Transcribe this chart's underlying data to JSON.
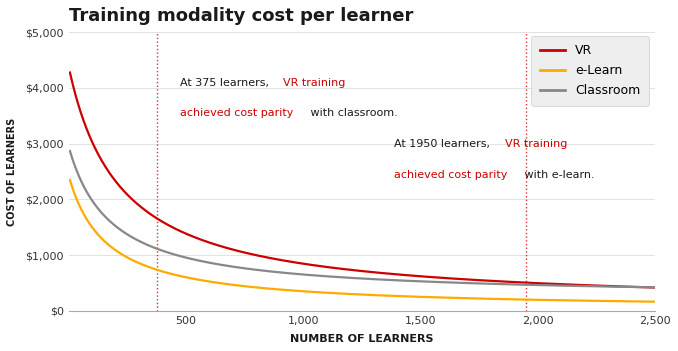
{
  "title": "Training modality cost per learner",
  "xlabel": "NUMBER OF LEARNERS",
  "ylabel": "COST OF LEARNERS",
  "x_max": 2500,
  "y_max": 5000,
  "y_ticks": [
    0,
    1000,
    2000,
    3000,
    4000,
    5000
  ],
  "y_tick_labels": [
    "$0",
    "$1,000",
    "$2,000",
    "$3,000",
    "$4,000",
    "$5,000"
  ],
  "x_ticks": [
    0,
    500,
    1000,
    1500,
    2000,
    2500
  ],
  "x_tick_labels": [
    "",
    "500",
    "1,000",
    "1,500",
    "2,000",
    "2,500"
  ],
  "vr_color": "#cc0000",
  "elearn_color": "#ffaa00",
  "classroom_color": "#888888",
  "background_color": "#ffffff",
  "legend_bg": "#eeeeee",
  "vline1_x": 375,
  "vline2_x": 1950,
  "vr_A": 4300,
  "vr_B": 70,
  "vr_C": 220,
  "elearn_A": 2400,
  "elearn_B": 20,
  "elearn_C": 160,
  "classroom_A": 2700,
  "classroom_B": 240,
  "classroom_C": 180,
  "ann1_line1_normal": "At 375 learners, ",
  "ann1_line1_red": "VR training",
  "ann1_line2_red": "achieved cost parity",
  "ann1_line2_normal": " with classroom.",
  "ann2_line1_normal": "At 1950 learners, ",
  "ann2_line1_red": "VR training",
  "ann2_line2_red": "achieved cost parity",
  "ann2_line2_normal": " with e-learn.",
  "ann1_ax_x": 0.19,
  "ann1_line1_ay": 0.8,
  "ann1_line2_ay": 0.69,
  "ann2_ax_x": 0.555,
  "ann2_line1_ay": 0.58,
  "ann2_line2_ay": 0.47
}
